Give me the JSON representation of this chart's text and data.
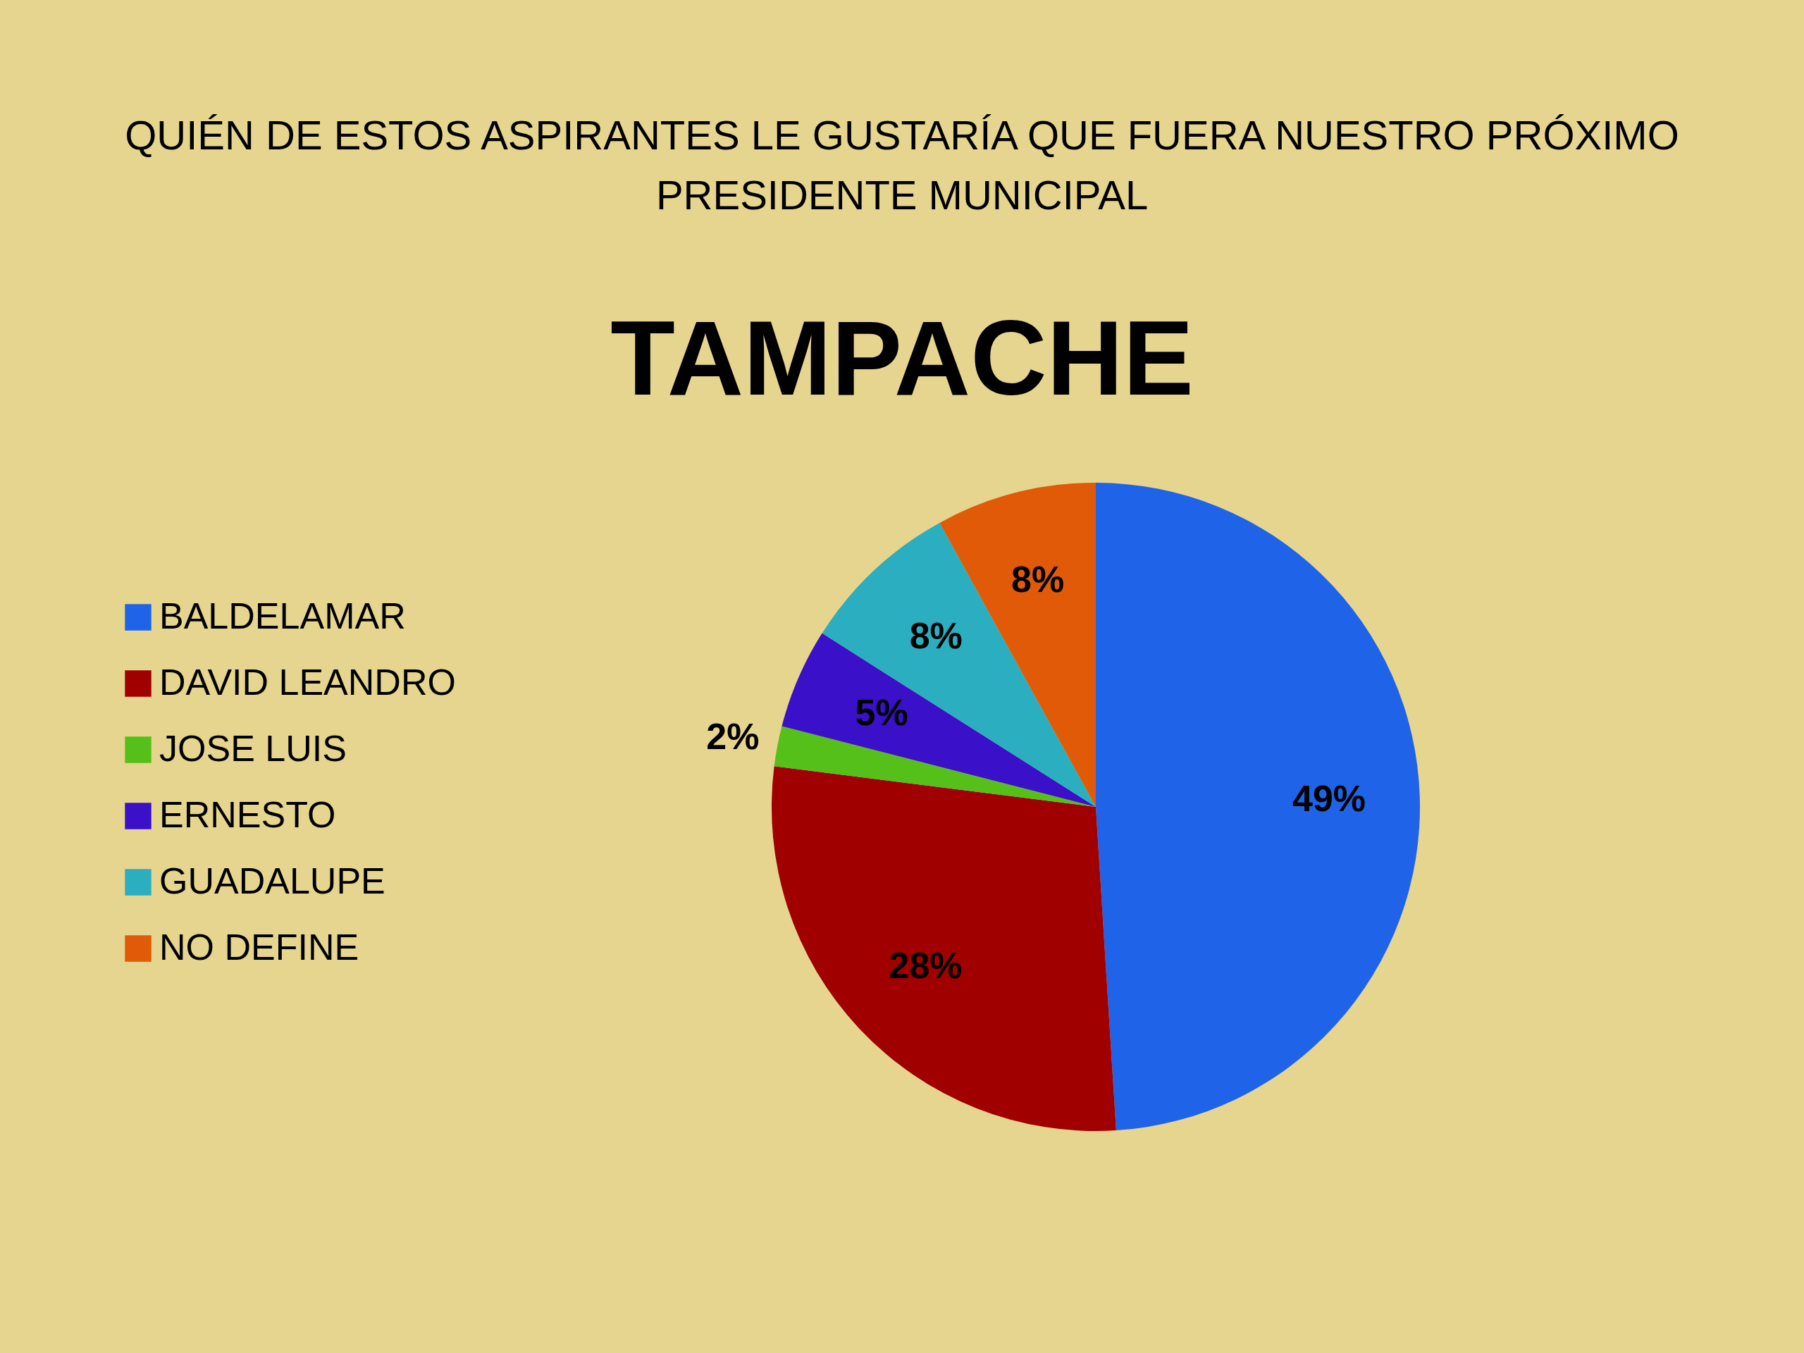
{
  "chart_data": {
    "type": "pie",
    "title": "QUIÉN DE ESTOS ASPIRANTES LE GUSTARÍA QUE FUERA NUESTRO PRÓXIMO PRESIDENTE MUNICIPAL",
    "subtitle": "TAMPACHE",
    "categories": [
      "BALDELAMAR",
      "DAVID LEANDRO",
      "JOSE LUIS",
      "ERNESTO",
      "GUADALUPE",
      "NO DEFINE"
    ],
    "values": [
      49,
      28,
      2,
      5,
      8,
      8
    ],
    "colors": [
      "#1f63e8",
      "#a00000",
      "#55c01a",
      "#3a10c8",
      "#2aaec0",
      "#e05a08"
    ],
    "value_labels": [
      "49%",
      "28%",
      "2%",
      "5%",
      "8%",
      "8%"
    ],
    "legend": "left"
  }
}
